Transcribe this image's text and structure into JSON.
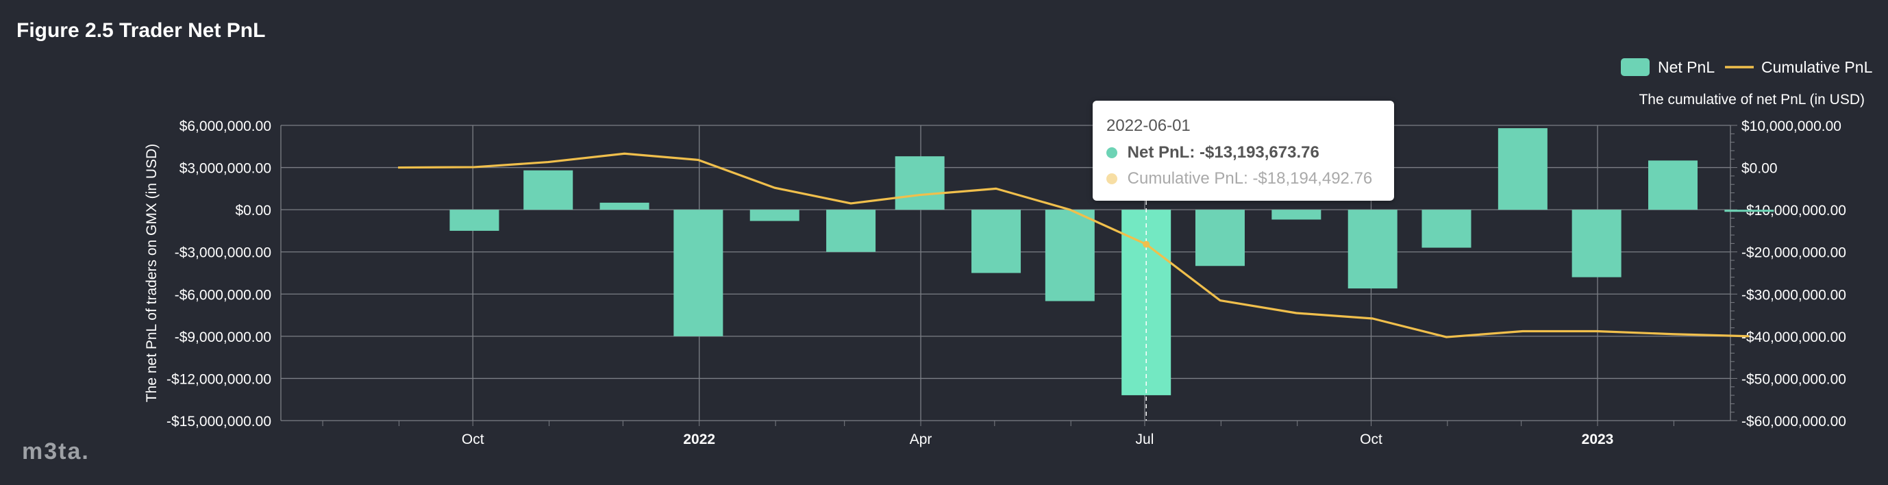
{
  "title": "Figure 2.5 Trader Net PnL",
  "logo_text": "m3ta.",
  "colors": {
    "background": "#272a33",
    "bar": "#6dd3b5",
    "bar_highlight": "#73e8c2",
    "line": "#f0bf4c",
    "grid": "#7c7f86",
    "text": "#ffffff"
  },
  "chart_data": {
    "type": "bar",
    "title": "",
    "legend": {
      "placement": "top-right",
      "entries": [
        "Net PnL",
        "Cumulative PnL"
      ]
    },
    "x_tick_labels": [
      "Oct",
      "2022",
      "Apr",
      "Jul",
      "Oct",
      "2023"
    ],
    "x_tick_dates": [
      "2021-10-01",
      "2022-01-01",
      "2022-04-01",
      "2022-07-01",
      "2022-10-01",
      "2023-01-01"
    ],
    "x_bold_ticks": [
      "2022",
      "2023"
    ],
    "y_left": {
      "label": "The net PnL of traders on GMX (in USD)",
      "range": [
        -15000000,
        6000000
      ],
      "ticks": [
        6000000,
        3000000,
        0,
        -3000000,
        -6000000,
        -9000000,
        -12000000,
        -15000000
      ],
      "tick_labels": [
        "$6,000,000.00",
        "$3,000,000.00",
        "$0.00",
        "-$3,000,000.00",
        "-$6,000,000.00",
        "-$9,000,000.00",
        "-$12,000,000.00",
        "-$15,000,000.00"
      ]
    },
    "y_right": {
      "label": "The cumulative of net PnL (in USD)",
      "range": [
        -60000000,
        10000000
      ],
      "ticks": [
        10000000,
        0,
        -10000000,
        -20000000,
        -30000000,
        -40000000,
        -50000000,
        -60000000
      ],
      "tick_labels": [
        "$10,000,000.00",
        "$0.00",
        "-$10,000,000.00",
        "-$20,000,000.00",
        "-$30,000,000.00",
        "-$40,000,000.00",
        "-$50,000,000.00",
        "-$60,000,000.00"
      ]
    },
    "grid": true,
    "x": [
      "2021-08-01",
      "2021-09-01",
      "2021-10-01",
      "2021-11-01",
      "2021-12-01",
      "2022-01-01",
      "2022-02-01",
      "2022-03-01",
      "2022-04-01",
      "2022-05-01",
      "2022-06-01",
      "2022-07-01",
      "2022-08-01",
      "2022-09-01",
      "2022-10-01",
      "2022-11-01",
      "2022-12-01",
      "2023-01-01",
      "2023-02-01"
    ],
    "series": [
      {
        "name": "Net PnL",
        "type": "bar",
        "axis": "left",
        "values": [
          null,
          -1500000,
          2800000,
          500000,
          -9000000,
          -800000,
          -3000000,
          3800000,
          -4500000,
          -6500000,
          -13193673.76,
          -4000000,
          -700000,
          -5600000,
          -2700000,
          5800000,
          -4800000,
          3500000,
          -150000
        ]
      },
      {
        "name": "Cumulative PnL",
        "type": "line",
        "axis": "right",
        "values": [
          0,
          100000,
          1300000,
          3300000,
          1800000,
          -4800000,
          -8500000,
          -6500000,
          -5000000,
          -10000000,
          -18194492.76,
          -31500000,
          -34500000,
          -35800000,
          -40200000,
          -38800000,
          -38800000,
          -39500000,
          -40000000
        ]
      }
    ],
    "highlight_index": 10,
    "tooltip": {
      "date": "2022-06-01",
      "row1_name": "Net PnL:",
      "row1_value": "-$13,193,673.76",
      "row2_name": "Cumulative PnL:",
      "row2_value": "-$18,194,492.76"
    }
  }
}
